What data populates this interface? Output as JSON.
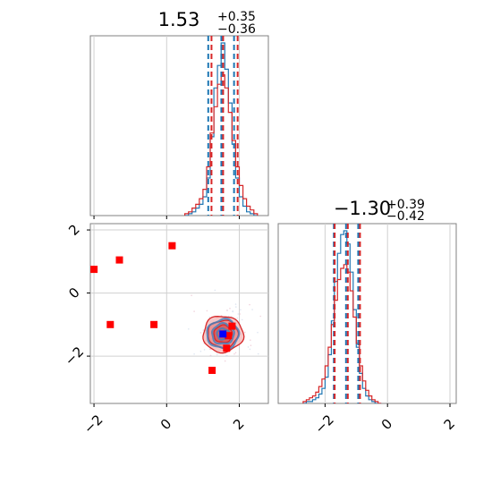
{
  "chart_data": [
    {
      "type": "histogram",
      "panel": "marginal-x",
      "title": {
        "median": "1.53",
        "plus": "+0.35",
        "minus": "−0.36"
      },
      "xlim": [
        -2.1,
        2.8
      ],
      "grid": true,
      "bins": [
        0.55,
        0.65,
        0.75,
        0.85,
        0.95,
        1.05,
        1.15,
        1.25,
        1.35,
        1.45,
        1.55,
        1.65,
        1.75,
        1.85,
        1.95,
        2.05,
        2.15,
        2.25,
        2.35,
        2.45
      ],
      "series": [
        {
          "color": "#1f77b4",
          "counts": [
            0,
            1,
            2,
            4,
            6,
            10,
            20,
            42,
            68,
            80,
            92,
            78,
            60,
            38,
            20,
            10,
            5,
            2,
            1,
            0
          ],
          "quantiles": [
            1.17,
            1.53,
            1.88
          ]
        },
        {
          "color": "#d62728",
          "counts": [
            1,
            2,
            4,
            6,
            9,
            14,
            26,
            44,
            58,
            70,
            75,
            68,
            55,
            40,
            26,
            16,
            9,
            5,
            3,
            1
          ],
          "quantiles": [
            1.21,
            1.53,
            1.93
          ]
        }
      ]
    },
    {
      "type": "scatter",
      "panel": "joint",
      "xlim": [
        -2.1,
        2.8
      ],
      "ylim": [
        -3.5,
        2.2
      ],
      "grid": true,
      "contours": {
        "center": [
          1.55,
          -1.3
        ],
        "red_radii": [
          [
            0.48,
            0.5
          ],
          [
            0.36,
            0.38
          ],
          [
            0.22,
            0.24
          ]
        ],
        "blue_radii": [
          [
            0.38,
            0.4
          ],
          [
            0.26,
            0.28
          ],
          [
            0.14,
            0.15
          ]
        ]
      },
      "red_markers": [
        [
          -2.0,
          0.75
        ],
        [
          -1.3,
          1.05
        ],
        [
          0.15,
          1.5
        ],
        [
          -1.55,
          -1.0
        ],
        [
          -0.35,
          -1.0
        ],
        [
          1.25,
          -2.45
        ],
        [
          1.65,
          -1.75
        ],
        [
          1.8,
          -1.05
        ],
        [
          1.7,
          -1.35
        ]
      ],
      "blue_markers": [
        [
          1.55,
          -1.3
        ]
      ],
      "xticks": [
        "−2",
        "0",
        "2"
      ],
      "yticks": [
        "−2",
        "0",
        "2"
      ]
    },
    {
      "type": "histogram",
      "panel": "marginal-y",
      "title": {
        "median": "−1.30",
        "plus": "+0.39",
        "minus": "−0.42"
      },
      "xlim": [
        -3.5,
        2.2
      ],
      "grid": true,
      "bins": [
        -2.65,
        -2.55,
        -2.45,
        -2.35,
        -2.25,
        -2.15,
        -2.05,
        -1.95,
        -1.85,
        -1.75,
        -1.65,
        -1.55,
        -1.45,
        -1.35,
        -1.25,
        -1.15,
        -1.05,
        -0.95,
        -0.85,
        -0.75,
        -0.65,
        -0.55,
        -0.45,
        -0.35,
        -0.25
      ],
      "series": [
        {
          "color": "#1f77b4",
          "counts": [
            0,
            1,
            1,
            2,
            3,
            5,
            8,
            14,
            26,
            44,
            65,
            80,
            90,
            92,
            85,
            70,
            50,
            30,
            16,
            8,
            4,
            2,
            1,
            0,
            0
          ],
          "quantiles": [
            -1.69,
            -1.3,
            -0.91
          ]
        },
        {
          "color": "#d62728",
          "counts": [
            1,
            2,
            3,
            4,
            6,
            9,
            13,
            20,
            30,
            42,
            55,
            66,
            72,
            74,
            70,
            60,
            46,
            32,
            20,
            12,
            7,
            4,
            2,
            1,
            0
          ],
          "quantiles": [
            -1.72,
            -1.3,
            -0.91
          ]
        }
      ],
      "xticks": [
        "−2",
        "0",
        "2"
      ]
    }
  ]
}
